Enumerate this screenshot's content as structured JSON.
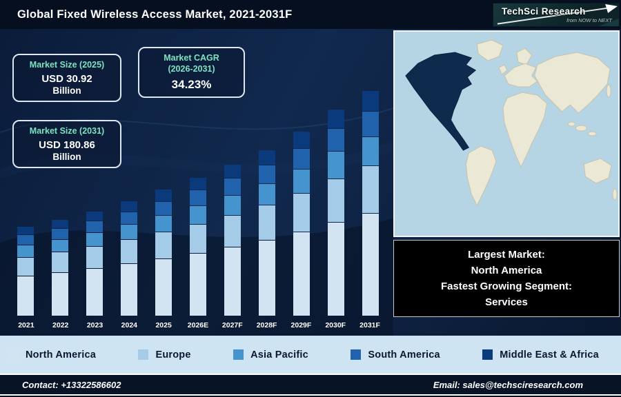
{
  "header": {
    "title": "Global Fixed Wireless Access Market, 2021-2031F",
    "logo": {
      "brand": "TechSci Research",
      "tagline": "from NOW to NEXT"
    }
  },
  "stats": {
    "size2025": {
      "label": "Market Size (2025)",
      "value": "USD 30.92",
      "unit": "Billion"
    },
    "cagr": {
      "label_line1": "Market CAGR",
      "label_line2": "(2026-2031)",
      "value": "34.23%"
    },
    "size2031": {
      "label": "Market Size (2031)",
      "value": "USD 180.86",
      "unit": "Billion"
    }
  },
  "chart_data": {
    "type": "bar",
    "stacked": true,
    "title": "Global Fixed Wireless Access Market, 2021-2031F",
    "note": "no y-axis shown; values are estimated relative stacked heights",
    "categories": [
      "2021",
      "2022",
      "2023",
      "2024",
      "2025",
      "2026E",
      "2027F",
      "2028F",
      "2029F",
      "2030F",
      "2031F"
    ],
    "series": [
      {
        "name": "North America",
        "color": "#d2e4f1",
        "values": [
          62,
          67,
          74,
          81,
          89,
          98,
          108,
          118,
          132,
          147,
          161
        ]
      },
      {
        "name": "Europe",
        "color": "#a4cbe7",
        "values": [
          28,
          31,
          34,
          37,
          41,
          45,
          49,
          54,
          60,
          67,
          74
        ]
      },
      {
        "name": "Asia Pacific",
        "color": "#4694ce",
        "values": [
          18,
          19,
          21,
          23,
          25,
          28,
          30,
          33,
          37,
          42,
          45
        ]
      },
      {
        "name": "South America",
        "color": "#2063ac",
        "values": [
          15,
          16,
          17,
          19,
          21,
          24,
          26,
          28,
          31,
          35,
          39
        ]
      },
      {
        "name": "Middle East & Africa",
        "color": "#0b3a7c",
        "values": [
          12,
          13,
          14,
          16,
          18,
          19,
          21,
          23,
          26,
          29,
          31
        ]
      }
    ],
    "legend_position": "bottom"
  },
  "map_panel": {
    "highlighted_region": "North America"
  },
  "callout": {
    "line1": "Largest Market:",
    "line2": "North America",
    "line3": "Fastest Growing Segment:",
    "line4": "Services"
  },
  "footer": {
    "contact": "Contact: +13322586602",
    "email": "Email: sales@techsciresearch.com"
  },
  "colors": {
    "accent_mint": "#7ce4c1",
    "legend_background": "#cfe4f2",
    "map_highlight": "#0e2b4e",
    "background": "#0b1c3a"
  }
}
